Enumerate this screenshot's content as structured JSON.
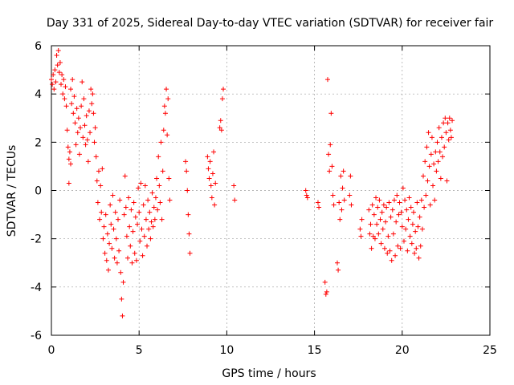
{
  "chart_data": {
    "type": "scatter",
    "title": "Day 331 of 2025, Sidereal Day-to-day VTEC variation (SDTVAR) for receiver fair",
    "xlabel": "GPS time / hours",
    "ylabel": "SDTVAR / TECUs",
    "xlim": [
      0,
      25
    ],
    "ylim": [
      -6,
      6
    ],
    "x_ticks": [
      0,
      5,
      10,
      15,
      20,
      25
    ],
    "y_ticks": [
      -6,
      -4,
      -2,
      0,
      2,
      4,
      6
    ],
    "x_tick_labels": [
      "0",
      "5",
      "10",
      "15",
      "20",
      "25"
    ],
    "y_tick_labels": [
      "-6",
      "-4",
      "-2",
      "0",
      "2",
      "4",
      "6"
    ],
    "grid": true,
    "marker": "+",
    "series": [
      {
        "name": "SDTVAR",
        "color": "#ff0000",
        "points": [
          [
            0.0,
            4.6
          ],
          [
            0.05,
            4.4
          ],
          [
            0.1,
            4.8
          ],
          [
            0.15,
            4.2
          ],
          [
            0.2,
            5.0
          ],
          [
            0.25,
            4.5
          ],
          [
            0.3,
            5.6
          ],
          [
            0.35,
            5.2
          ],
          [
            0.4,
            5.8
          ],
          [
            0.45,
            4.9
          ],
          [
            0.5,
            5.3
          ],
          [
            0.55,
            4.4
          ],
          [
            0.6,
            4.8
          ],
          [
            0.65,
            4.0
          ],
          [
            0.7,
            4.6
          ],
          [
            0.75,
            3.8
          ],
          [
            0.8,
            4.3
          ],
          [
            0.85,
            3.5
          ],
          [
            0.9,
            2.5
          ],
          [
            0.95,
            1.8
          ],
          [
            1.0,
            1.3
          ],
          [
            1.0,
            0.3
          ],
          [
            1.05,
            1.6
          ],
          [
            1.1,
            1.1
          ],
          [
            1.1,
            4.2
          ],
          [
            1.15,
            3.6
          ],
          [
            1.2,
            4.6
          ],
          [
            1.25,
            3.2
          ],
          [
            1.3,
            3.9
          ],
          [
            1.35,
            2.8
          ],
          [
            1.4,
            1.9
          ],
          [
            1.45,
            3.4
          ],
          [
            1.5,
            2.4
          ],
          [
            1.55,
            3.0
          ],
          [
            1.6,
            1.5
          ],
          [
            1.65,
            2.6
          ],
          [
            1.7,
            3.5
          ],
          [
            1.75,
            4.5
          ],
          [
            1.8,
            2.2
          ],
          [
            1.85,
            3.8
          ],
          [
            1.9,
            2.7
          ],
          [
            1.95,
            1.9
          ],
          [
            2.0,
            3.1
          ],
          [
            2.05,
            2.1
          ],
          [
            2.1,
            1.2
          ],
          [
            2.15,
            3.3
          ],
          [
            2.2,
            2.4
          ],
          [
            2.25,
            4.2
          ],
          [
            2.3,
            3.6
          ],
          [
            2.35,
            4.0
          ],
          [
            2.4,
            3.2
          ],
          [
            2.45,
            2.0
          ],
          [
            2.5,
            2.6
          ],
          [
            2.55,
            1.4
          ],
          [
            2.6,
            0.4
          ],
          [
            2.65,
            -0.5
          ],
          [
            2.7,
            0.8
          ],
          [
            2.75,
            -1.2
          ],
          [
            2.8,
            0.2
          ],
          [
            2.85,
            -0.9
          ],
          [
            2.9,
            0.9
          ],
          [
            2.95,
            -2.0
          ],
          [
            3.0,
            -1.5
          ],
          [
            3.05,
            -2.6
          ],
          [
            3.1,
            -1.0
          ],
          [
            3.15,
            -2.9
          ],
          [
            3.2,
            -1.8
          ],
          [
            3.25,
            -3.3
          ],
          [
            3.3,
            -2.2
          ],
          [
            3.35,
            -0.6
          ],
          [
            3.4,
            -1.4
          ],
          [
            3.45,
            -2.4
          ],
          [
            3.5,
            -0.2
          ],
          [
            3.55,
            -1.6
          ],
          [
            3.6,
            -2.8
          ],
          [
            3.65,
            -0.9
          ],
          [
            3.7,
            -2.0
          ],
          [
            3.75,
            -3.0
          ],
          [
            3.8,
            -1.2
          ],
          [
            3.85,
            -2.5
          ],
          [
            3.9,
            -0.4
          ],
          [
            3.95,
            -3.4
          ],
          [
            4.0,
            -4.5
          ],
          [
            4.05,
            -5.2
          ],
          [
            4.1,
            -3.8
          ],
          [
            4.15,
            -1.0
          ],
          [
            4.2,
            0.6
          ],
          [
            4.25,
            -0.7
          ],
          [
            4.3,
            -1.9
          ],
          [
            4.35,
            -2.8
          ],
          [
            4.4,
            -0.3
          ],
          [
            4.45,
            -1.5
          ],
          [
            4.5,
            -2.3
          ],
          [
            4.55,
            -0.8
          ],
          [
            4.6,
            -3.0
          ],
          [
            4.65,
            -1.7
          ],
          [
            4.7,
            -0.5
          ],
          [
            4.75,
            -2.6
          ],
          [
            4.8,
            -1.1
          ],
          [
            4.85,
            -2.9
          ],
          [
            4.9,
            -1.4
          ],
          [
            4.95,
            0.1
          ],
          [
            5.0,
            -0.9
          ],
          [
            5.05,
            -2.1
          ],
          [
            5.1,
            0.3
          ],
          [
            5.15,
            -1.6
          ],
          [
            5.2,
            -2.7
          ],
          [
            5.25,
            -0.6
          ],
          [
            5.3,
            -1.9
          ],
          [
            5.35,
            0.2
          ],
          [
            5.4,
            -1.2
          ],
          [
            5.45,
            -2.3
          ],
          [
            5.5,
            -0.4
          ],
          [
            5.55,
            -1.6
          ],
          [
            5.6,
            -0.9
          ],
          [
            5.65,
            -2.0
          ],
          [
            5.7,
            -1.3
          ],
          [
            5.75,
            -0.1
          ],
          [
            5.8,
            -1.5
          ],
          [
            5.85,
            -0.7
          ],
          [
            5.9,
            -1.2
          ],
          [
            5.95,
            -0.3
          ],
          [
            6.0,
            0.5
          ],
          [
            6.05,
            -0.8
          ],
          [
            6.1,
            1.4
          ],
          [
            6.15,
            0.2
          ],
          [
            6.2,
            -0.5
          ],
          [
            6.25,
            2.0
          ],
          [
            6.3,
            -1.2
          ],
          [
            6.35,
            0.8
          ],
          [
            6.4,
            2.5
          ],
          [
            6.45,
            3.5
          ],
          [
            6.5,
            3.2
          ],
          [
            6.55,
            4.2
          ],
          [
            6.6,
            2.3
          ],
          [
            6.65,
            3.8
          ],
          [
            6.7,
            0.5
          ],
          [
            6.75,
            -0.4
          ],
          [
            7.65,
            1.2
          ],
          [
            7.7,
            0.8
          ],
          [
            7.75,
            0.0
          ],
          [
            7.8,
            -1.0
          ],
          [
            7.85,
            -1.8
          ],
          [
            7.9,
            -2.6
          ],
          [
            8.9,
            1.4
          ],
          [
            8.95,
            0.9
          ],
          [
            9.0,
            0.5
          ],
          [
            9.05,
            1.2
          ],
          [
            9.1,
            0.2
          ],
          [
            9.15,
            -0.3
          ],
          [
            9.2,
            0.7
          ],
          [
            9.25,
            1.6
          ],
          [
            9.3,
            -0.6
          ],
          [
            9.35,
            0.3
          ],
          [
            9.6,
            2.6
          ],
          [
            9.65,
            2.9
          ],
          [
            9.7,
            2.5
          ],
          [
            9.75,
            3.8
          ],
          [
            9.8,
            4.2
          ],
          [
            10.4,
            0.2
          ],
          [
            10.45,
            -0.4
          ],
          [
            14.5,
            0.0
          ],
          [
            14.55,
            -0.2
          ],
          [
            14.6,
            -0.3
          ],
          [
            15.2,
            -0.5
          ],
          [
            15.25,
            -0.7
          ],
          [
            15.6,
            -3.8
          ],
          [
            15.65,
            -4.3
          ],
          [
            15.7,
            -4.2
          ],
          [
            15.75,
            4.6
          ],
          [
            15.8,
            1.5
          ],
          [
            15.85,
            0.8
          ],
          [
            15.9,
            1.9
          ],
          [
            15.95,
            3.2
          ],
          [
            16.0,
            1.0
          ],
          [
            16.05,
            -0.2
          ],
          [
            16.1,
            -0.6
          ],
          [
            16.3,
            -3.0
          ],
          [
            16.35,
            -3.3
          ],
          [
            16.4,
            -0.5
          ],
          [
            16.45,
            -1.2
          ],
          [
            16.5,
            0.6
          ],
          [
            16.55,
            -0.8
          ],
          [
            16.6,
            0.1
          ],
          [
            16.65,
            0.8
          ],
          [
            16.7,
            -0.4
          ],
          [
            17.0,
            -0.2
          ],
          [
            17.05,
            0.6
          ],
          [
            17.1,
            -0.6
          ],
          [
            17.6,
            -1.6
          ],
          [
            17.65,
            -1.9
          ],
          [
            17.7,
            -1.2
          ],
          [
            18.1,
            -0.8
          ],
          [
            18.15,
            -1.8
          ],
          [
            18.2,
            -1.4
          ],
          [
            18.25,
            -2.4
          ],
          [
            18.3,
            -0.6
          ],
          [
            18.35,
            -1.9
          ],
          [
            18.4,
            -1.0
          ],
          [
            18.45,
            -2.0
          ],
          [
            18.5,
            -0.3
          ],
          [
            18.55,
            -1.4
          ],
          [
            18.6,
            -0.7
          ],
          [
            18.65,
            -1.8
          ],
          [
            18.7,
            -0.4
          ],
          [
            18.75,
            -1.2
          ],
          [
            18.8,
            -2.2
          ],
          [
            18.85,
            -0.9
          ],
          [
            18.9,
            -1.6
          ],
          [
            18.95,
            -0.6
          ],
          [
            19.0,
            -2.4
          ],
          [
            19.05,
            -1.3
          ],
          [
            19.1,
            -0.7
          ],
          [
            19.15,
            -2.6
          ],
          [
            19.2,
            -1.9
          ],
          [
            19.25,
            -0.5
          ],
          [
            19.3,
            -2.5
          ],
          [
            19.35,
            -1.1
          ],
          [
            19.4,
            -2.9
          ],
          [
            19.45,
            -0.8
          ],
          [
            19.5,
            -1.8
          ],
          [
            19.55,
            -0.4
          ],
          [
            19.6,
            -2.7
          ],
          [
            19.65,
            -1.3
          ],
          [
            19.7,
            -0.2
          ],
          [
            19.75,
            -2.3
          ],
          [
            19.8,
            -1.0
          ],
          [
            19.85,
            -0.5
          ],
          [
            19.9,
            -2.4
          ],
          [
            19.95,
            -0.9
          ],
          [
            20.0,
            -1.5
          ],
          [
            20.05,
            0.1
          ],
          [
            20.1,
            -2.1
          ],
          [
            20.15,
            -0.4
          ],
          [
            20.2,
            -1.6
          ],
          [
            20.25,
            -0.8
          ],
          [
            20.3,
            -2.5
          ],
          [
            20.35,
            -1.2
          ],
          [
            20.4,
            -0.3
          ],
          [
            20.45,
            -1.9
          ],
          [
            20.5,
            -0.7
          ],
          [
            20.55,
            -2.2
          ],
          [
            20.6,
            -1.4
          ],
          [
            20.65,
            -0.9
          ],
          [
            20.7,
            -2.6
          ],
          [
            20.75,
            -1.7
          ],
          [
            20.8,
            -2.4
          ],
          [
            20.85,
            -0.5
          ],
          [
            20.9,
            -1.5
          ],
          [
            20.95,
            -2.8
          ],
          [
            21.0,
            -1.1
          ],
          [
            21.05,
            -2.3
          ],
          [
            21.1,
            -0.4
          ],
          [
            21.15,
            -1.6
          ],
          [
            21.2,
            0.6
          ],
          [
            21.25,
            -0.7
          ],
          [
            21.3,
            1.2
          ],
          [
            21.35,
            -0.2
          ],
          [
            21.4,
            1.8
          ],
          [
            21.45,
            0.4
          ],
          [
            21.5,
            2.4
          ],
          [
            21.55,
            1.0
          ],
          [
            21.6,
            -0.6
          ],
          [
            21.65,
            1.5
          ],
          [
            21.7,
            2.2
          ],
          [
            21.75,
            0.2
          ],
          [
            21.8,
            1.1
          ],
          [
            21.85,
            -0.4
          ],
          [
            21.9,
            1.6
          ],
          [
            21.95,
            0.8
          ],
          [
            22.0,
            2.0
          ],
          [
            22.05,
            1.2
          ],
          [
            22.1,
            2.6
          ],
          [
            22.15,
            1.6
          ],
          [
            22.2,
            0.5
          ],
          [
            22.25,
            2.2
          ],
          [
            22.3,
            1.4
          ],
          [
            22.35,
            2.8
          ],
          [
            22.4,
            1.8
          ],
          [
            22.45,
            3.0
          ],
          [
            22.5,
            2.4
          ],
          [
            22.55,
            0.4
          ],
          [
            22.6,
            2.8
          ],
          [
            22.65,
            2.1
          ],
          [
            22.7,
            3.0
          ],
          [
            22.75,
            2.5
          ],
          [
            22.8,
            2.2
          ],
          [
            22.85,
            2.9
          ]
        ]
      }
    ]
  }
}
